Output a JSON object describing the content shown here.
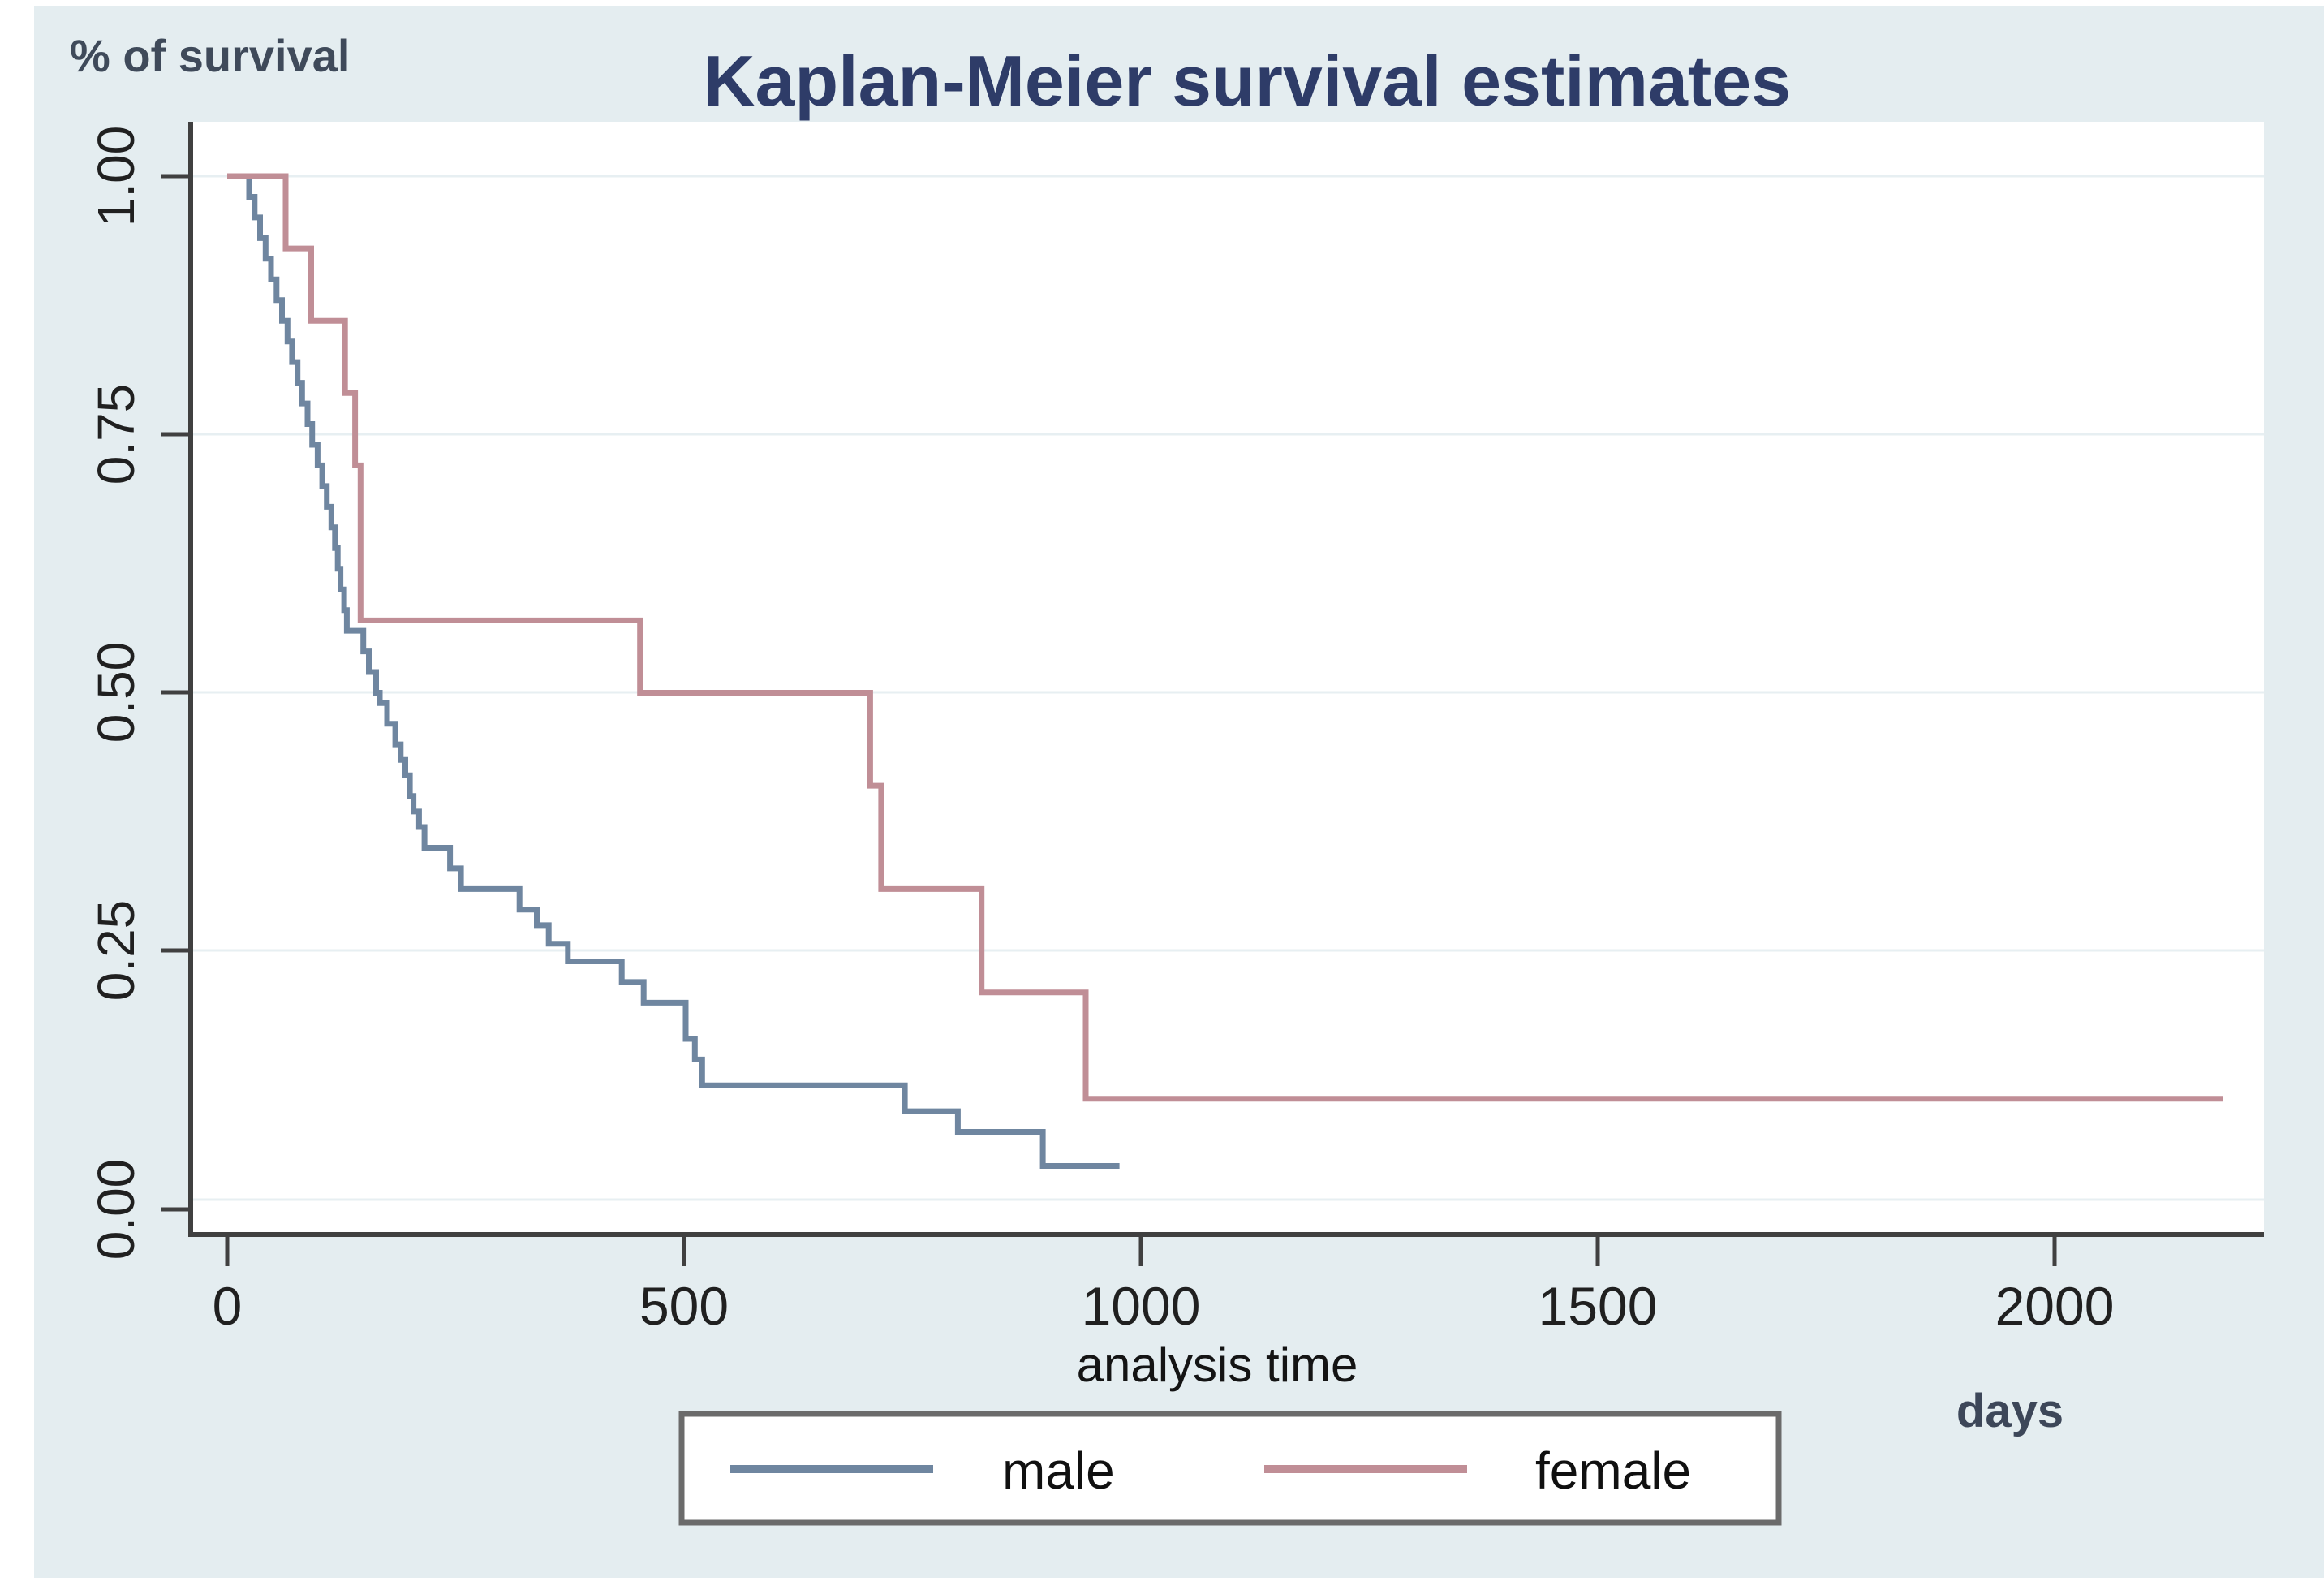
{
  "chart_data": {
    "type": "line",
    "variant": "kaplan-meier-step",
    "title": "Kaplan-Meier survival estimates",
    "y_axis_label": "% of survival",
    "x_axis_label": "analysis time",
    "x_unit_label": "days",
    "xlim": [
      0,
      2230
    ],
    "ylim": [
      0.0,
      1.0
    ],
    "xticks": [
      0,
      500,
      1000,
      1500,
      2000
    ],
    "xtick_labels": [
      "0",
      "500",
      "1000",
      "1500",
      "2000"
    ],
    "ytick_values": [
      1.0,
      0.75,
      0.5,
      0.25,
      0.0
    ],
    "ytick_labels": [
      "1.00",
      "0.75",
      "0.50",
      "0.25",
      "0.00"
    ],
    "grid": true,
    "legend": {
      "position": "bottom-center",
      "entries": [
        {
          "label": "male",
          "color": "#6f86a0"
        },
        {
          "label": "female",
          "color": "#c08e96"
        }
      ]
    },
    "series": [
      {
        "name": "male",
        "color": "#6f86a0",
        "end_time": 977,
        "points": [
          [
            0,
            1.0
          ],
          [
            24,
            0.98
          ],
          [
            30,
            0.96
          ],
          [
            36,
            0.94
          ],
          [
            42,
            0.92
          ],
          [
            48,
            0.9
          ],
          [
            54,
            0.88
          ],
          [
            60,
            0.86
          ],
          [
            66,
            0.84
          ],
          [
            71,
            0.82
          ],
          [
            77,
            0.8
          ],
          [
            82,
            0.78
          ],
          [
            88,
            0.76
          ],
          [
            93,
            0.74
          ],
          [
            99,
            0.72
          ],
          [
            104,
            0.7
          ],
          [
            109,
            0.68
          ],
          [
            114,
            0.66
          ],
          [
            118,
            0.64
          ],
          [
            121,
            0.62
          ],
          [
            124,
            0.6
          ],
          [
            128,
            0.58
          ],
          [
            131,
            0.56
          ],
          [
            149,
            0.54
          ],
          [
            155,
            0.52
          ],
          [
            163,
            0.5
          ],
          [
            167,
            0.49
          ],
          [
            175,
            0.47
          ],
          [
            184,
            0.45
          ],
          [
            190,
            0.435
          ],
          [
            195,
            0.42
          ],
          [
            200,
            0.4
          ],
          [
            204,
            0.385
          ],
          [
            210,
            0.37
          ],
          [
            216,
            0.35
          ],
          [
            244,
            0.33
          ],
          [
            256,
            0.31
          ],
          [
            320,
            0.29
          ],
          [
            339,
            0.275
          ],
          [
            352,
            0.257
          ],
          [
            373,
            0.24
          ],
          [
            432,
            0.22
          ],
          [
            456,
            0.2
          ],
          [
            502,
            0.165
          ],
          [
            512,
            0.145
          ],
          [
            520,
            0.12
          ],
          [
            742,
            0.095
          ],
          [
            800,
            0.075
          ],
          [
            893,
            0.042
          ]
        ]
      },
      {
        "name": "female",
        "color": "#c08e96",
        "end_time": 2185,
        "points": [
          [
            0,
            1.0
          ],
          [
            64,
            0.93
          ],
          [
            92,
            0.86
          ],
          [
            129,
            0.79
          ],
          [
            140,
            0.72
          ],
          [
            146,
            0.57
          ],
          [
            452,
            0.5
          ],
          [
            704,
            0.41
          ],
          [
            716,
            0.31
          ],
          [
            826,
            0.21
          ],
          [
            940,
            0.107
          ]
        ]
      }
    ],
    "colors": {
      "figure_background": "#e4edf0",
      "plot_background": "#ffffff",
      "gridline": "#e7eff2",
      "axis": "#404040",
      "title_text": "#2e3c68",
      "tick_text": "#202020",
      "legend_border": "#6b6b6b",
      "male_line": "#6f86a0",
      "female_line": "#c08e96"
    }
  }
}
